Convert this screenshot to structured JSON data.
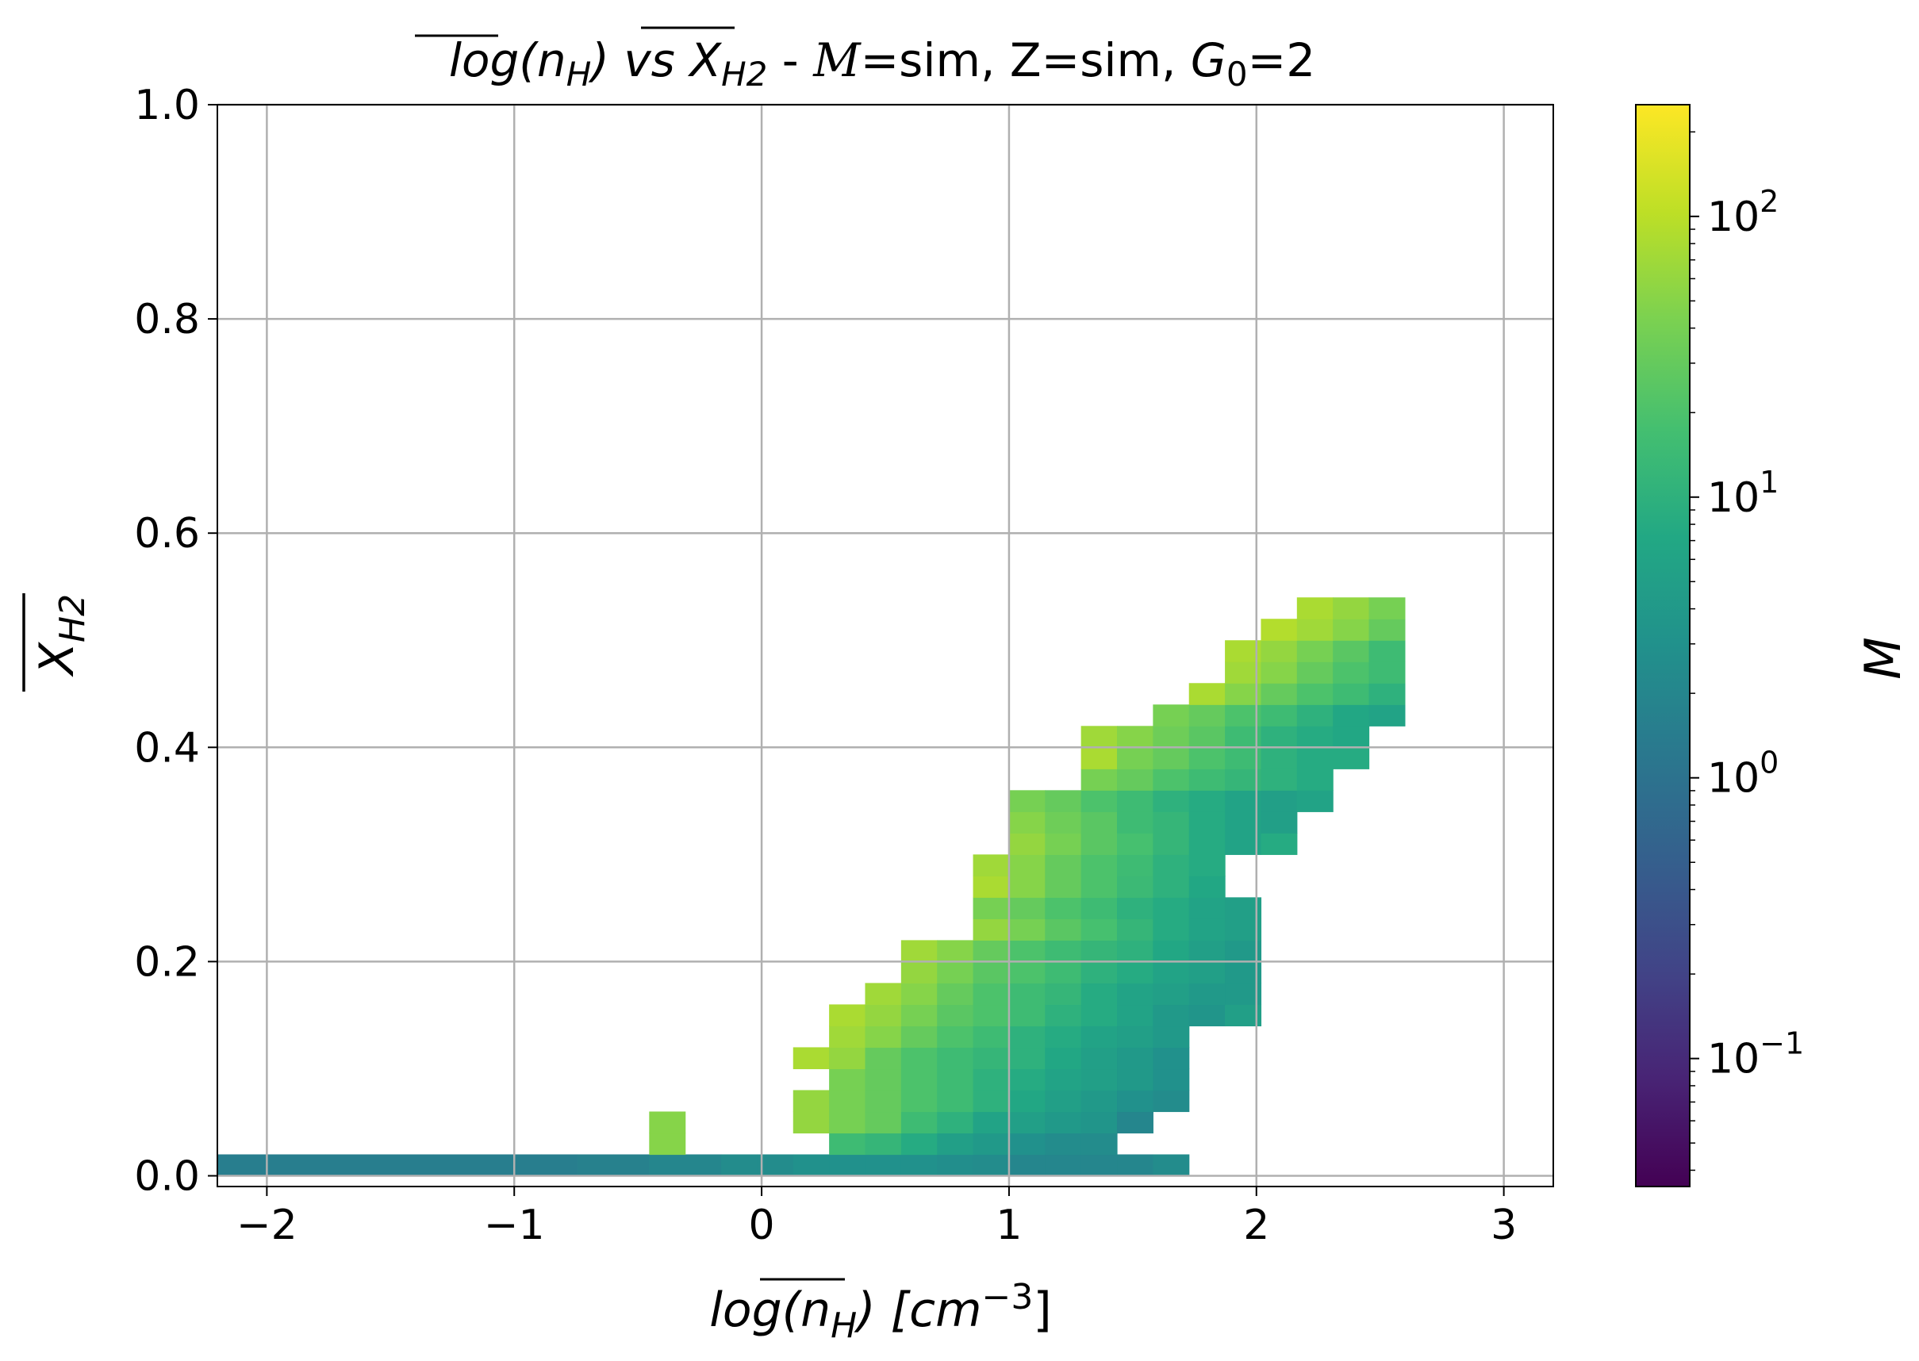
{
  "chart_data": {
    "type": "heatmap",
    "title": {
      "prefix": "log(",
      "nh": "n",
      "nh_sub": "H",
      "mid": ") vs ",
      "xh": "X",
      "xh_sub": "H2",
      "rest": " - ",
      "mach": "M",
      "params": "=sim, Z=sim, ",
      "g0": "G",
      "g0_sub": "0",
      "g0_val": "=2"
    },
    "xlabel": {
      "prefix": "log(",
      "nh": "n",
      "nh_sub": "H",
      "suffix": ") [",
      "unit": "cm",
      "exp": "−3",
      "close": "]"
    },
    "ylabel": {
      "base": "X",
      "sub": "H2"
    },
    "colorbar_label": "M",
    "xlim": [
      -2.2,
      3.2
    ],
    "ylim": [
      -0.01,
      1.0
    ],
    "x_ticks": [
      {
        "value": -2,
        "label": "−2"
      },
      {
        "value": -1,
        "label": "−1"
      },
      {
        "value": 0,
        "label": "0"
      },
      {
        "value": 1,
        "label": "1"
      },
      {
        "value": 2,
        "label": "2"
      },
      {
        "value": 3,
        "label": "3"
      }
    ],
    "y_ticks": [
      {
        "value": 0.0,
        "label": "0.0"
      },
      {
        "value": 0.2,
        "label": "0.2"
      },
      {
        "value": 0.4,
        "label": "0.4"
      },
      {
        "value": 0.6,
        "label": "0.6"
      },
      {
        "value": 0.8,
        "label": "0.8"
      },
      {
        "value": 1.0,
        "label": "1.0"
      }
    ],
    "colorbar": {
      "scale": "log",
      "colormap": "viridis",
      "range": [
        0.035,
        250
      ],
      "ticks": [
        {
          "value": 0.1,
          "mant": "10",
          "exp": "−1"
        },
        {
          "value": 1,
          "mant": "10",
          "exp": "0"
        },
        {
          "value": 10,
          "mant": "10",
          "exp": "1"
        },
        {
          "value": 100,
          "mant": "10",
          "exp": "2"
        }
      ]
    },
    "grid": true,
    "bins": {
      "x_min": -2.2,
      "x_max": 2.6,
      "x_count": 33,
      "y_min": 0.0,
      "y_max": 1.0,
      "y_count": 50,
      "x_range": [
        -2.2,
        2.6
      ],
      "y_range": [
        0,
        1
      ],
      "cells": [
        [
          0,
          0,
          1.5
        ],
        [
          1,
          0,
          1.5
        ],
        [
          2,
          0,
          1.5
        ],
        [
          3,
          0,
          1.5
        ],
        [
          4,
          0,
          1.5
        ],
        [
          5,
          0,
          1.5
        ],
        [
          6,
          0,
          1.5
        ],
        [
          7,
          0,
          1.5
        ],
        [
          8,
          0,
          1.5
        ],
        [
          9,
          0,
          1.5
        ],
        [
          10,
          0,
          1.7
        ],
        [
          11,
          0,
          1.7
        ],
        [
          12,
          0,
          2
        ],
        [
          13,
          0,
          2
        ],
        [
          14,
          0,
          2.5
        ],
        [
          15,
          0,
          2.5
        ],
        [
          16,
          0,
          3
        ],
        [
          17,
          0,
          3
        ],
        [
          18,
          0,
          3
        ],
        [
          19,
          0,
          3
        ],
        [
          20,
          0,
          2.7
        ],
        [
          21,
          0,
          2.5
        ],
        [
          22,
          0,
          2
        ],
        [
          23,
          0,
          2
        ],
        [
          24,
          0,
          2
        ],
        [
          25,
          0,
          2
        ],
        [
          26,
          0,
          2.5
        ],
        [
          12,
          1,
          50
        ],
        [
          17,
          1,
          15
        ],
        [
          18,
          1,
          12
        ],
        [
          19,
          1,
          8
        ],
        [
          20,
          1,
          5
        ],
        [
          21,
          1,
          4
        ],
        [
          22,
          1,
          3
        ],
        [
          23,
          1,
          2.5
        ],
        [
          24,
          1,
          2.5
        ],
        [
          12,
          2,
          50
        ],
        [
          16,
          2,
          60
        ],
        [
          17,
          2,
          40
        ],
        [
          18,
          2,
          30
        ],
        [
          19,
          2,
          15
        ],
        [
          20,
          2,
          10
        ],
        [
          21,
          2,
          6
        ],
        [
          22,
          2,
          5
        ],
        [
          23,
          2,
          4
        ],
        [
          24,
          2,
          3.5
        ],
        [
          25,
          2,
          2
        ],
        [
          16,
          3,
          60
        ],
        [
          17,
          3,
          40
        ],
        [
          18,
          3,
          30
        ],
        [
          19,
          3,
          20
        ],
        [
          20,
          3,
          15
        ],
        [
          21,
          3,
          10
        ],
        [
          22,
          3,
          7
        ],
        [
          23,
          3,
          5
        ],
        [
          24,
          3,
          4
        ],
        [
          25,
          3,
          3
        ],
        [
          26,
          3,
          2.5
        ],
        [
          17,
          4,
          40
        ],
        [
          18,
          4,
          30
        ],
        [
          19,
          4,
          20
        ],
        [
          20,
          4,
          15
        ],
        [
          21,
          4,
          10
        ],
        [
          22,
          4,
          8
        ],
        [
          23,
          4,
          6
        ],
        [
          24,
          4,
          5
        ],
        [
          25,
          4,
          4
        ],
        [
          26,
          4,
          3
        ],
        [
          16,
          5,
          80
        ],
        [
          17,
          5,
          60
        ],
        [
          18,
          5,
          30
        ],
        [
          19,
          5,
          20
        ],
        [
          20,
          5,
          15
        ],
        [
          21,
          5,
          12
        ],
        [
          22,
          5,
          10
        ],
        [
          23,
          5,
          7
        ],
        [
          24,
          5,
          5
        ],
        [
          25,
          5,
          4
        ],
        [
          26,
          5,
          3
        ],
        [
          17,
          6,
          70
        ],
        [
          18,
          6,
          50
        ],
        [
          19,
          6,
          30
        ],
        [
          20,
          6,
          20
        ],
        [
          21,
          6,
          15
        ],
        [
          22,
          6,
          10
        ],
        [
          23,
          6,
          8
        ],
        [
          24,
          6,
          6
        ],
        [
          25,
          6,
          5
        ],
        [
          26,
          6,
          4
        ],
        [
          17,
          7,
          80
        ],
        [
          18,
          7,
          60
        ],
        [
          19,
          7,
          40
        ],
        [
          20,
          7,
          25
        ],
        [
          21,
          7,
          20
        ],
        [
          22,
          7,
          15
        ],
        [
          23,
          7,
          10
        ],
        [
          24,
          7,
          8
        ],
        [
          25,
          7,
          6
        ],
        [
          26,
          7,
          4
        ],
        [
          27,
          7,
          3.5
        ],
        [
          28,
          7,
          5
        ],
        [
          18,
          8,
          70
        ],
        [
          19,
          8,
          50
        ],
        [
          20,
          8,
          30
        ],
        [
          21,
          8,
          20
        ],
        [
          22,
          8,
          15
        ],
        [
          23,
          8,
          12
        ],
        [
          24,
          8,
          8
        ],
        [
          25,
          8,
          6
        ],
        [
          26,
          8,
          5
        ],
        [
          27,
          8,
          4
        ],
        [
          28,
          8,
          4
        ],
        [
          19,
          9,
          60
        ],
        [
          20,
          9,
          40
        ],
        [
          21,
          9,
          25
        ],
        [
          22,
          9,
          20
        ],
        [
          23,
          9,
          15
        ],
        [
          24,
          9,
          10
        ],
        [
          25,
          9,
          8
        ],
        [
          26,
          9,
          6
        ],
        [
          27,
          9,
          5
        ],
        [
          28,
          9,
          4
        ],
        [
          19,
          10,
          70
        ],
        [
          20,
          10,
          50
        ],
        [
          21,
          10,
          30
        ],
        [
          22,
          10,
          20
        ],
        [
          23,
          10,
          15
        ],
        [
          24,
          10,
          12
        ],
        [
          25,
          10,
          10
        ],
        [
          26,
          10,
          7
        ],
        [
          27,
          10,
          5
        ],
        [
          28,
          10,
          4
        ],
        [
          21,
          11,
          60
        ],
        [
          22,
          11,
          40
        ],
        [
          23,
          11,
          25
        ],
        [
          24,
          11,
          18
        ],
        [
          25,
          11,
          12
        ],
        [
          26,
          11,
          8
        ],
        [
          27,
          11,
          6
        ],
        [
          28,
          11,
          5
        ],
        [
          21,
          12,
          40
        ],
        [
          22,
          12,
          30
        ],
        [
          23,
          12,
          20
        ],
        [
          24,
          12,
          15
        ],
        [
          25,
          12,
          10
        ],
        [
          26,
          12,
          8
        ],
        [
          27,
          12,
          6
        ],
        [
          28,
          12,
          5
        ],
        [
          21,
          13,
          80
        ],
        [
          22,
          13,
          50
        ],
        [
          23,
          13,
          30
        ],
        [
          24,
          13,
          20
        ],
        [
          25,
          13,
          14
        ],
        [
          26,
          13,
          10
        ],
        [
          27,
          13,
          7
        ],
        [
          21,
          14,
          70
        ],
        [
          22,
          14,
          50
        ],
        [
          23,
          14,
          30
        ],
        [
          24,
          14,
          20
        ],
        [
          25,
          14,
          15
        ],
        [
          26,
          14,
          10
        ],
        [
          27,
          14,
          8
        ],
        [
          22,
          15,
          60
        ],
        [
          23,
          15,
          40
        ],
        [
          24,
          15,
          25
        ],
        [
          25,
          15,
          18
        ],
        [
          26,
          15,
          12
        ],
        [
          27,
          15,
          8
        ],
        [
          28,
          15,
          6
        ],
        [
          29,
          15,
          8
        ],
        [
          22,
          16,
          50
        ],
        [
          23,
          16,
          35
        ],
        [
          24,
          16,
          25
        ],
        [
          25,
          16,
          15
        ],
        [
          26,
          16,
          12
        ],
        [
          27,
          16,
          8
        ],
        [
          28,
          16,
          6
        ],
        [
          29,
          16,
          5
        ],
        [
          22,
          17,
          40
        ],
        [
          23,
          17,
          30
        ],
        [
          24,
          17,
          20
        ],
        [
          25,
          17,
          15
        ],
        [
          26,
          17,
          10
        ],
        [
          27,
          17,
          8
        ],
        [
          28,
          17,
          6
        ],
        [
          29,
          17,
          5
        ],
        [
          30,
          17,
          6
        ],
        [
          24,
          18,
          40
        ],
        [
          25,
          18,
          30
        ],
        [
          26,
          18,
          20
        ],
        [
          27,
          18,
          15
        ],
        [
          28,
          18,
          12
        ],
        [
          29,
          18,
          10
        ],
        [
          30,
          18,
          8
        ],
        [
          24,
          19,
          80
        ],
        [
          25,
          19,
          40
        ],
        [
          26,
          19,
          30
        ],
        [
          27,
          19,
          20
        ],
        [
          28,
          19,
          15
        ],
        [
          29,
          19,
          10
        ],
        [
          30,
          19,
          8
        ],
        [
          31,
          19,
          8
        ],
        [
          24,
          20,
          70
        ],
        [
          25,
          20,
          50
        ],
        [
          26,
          20,
          35
        ],
        [
          27,
          20,
          25
        ],
        [
          28,
          20,
          15
        ],
        [
          29,
          20,
          10
        ],
        [
          30,
          20,
          8
        ],
        [
          31,
          20,
          7
        ],
        [
          26,
          21,
          40
        ],
        [
          27,
          21,
          30
        ],
        [
          28,
          21,
          20
        ],
        [
          29,
          21,
          15
        ],
        [
          30,
          21,
          10
        ],
        [
          31,
          21,
          7
        ],
        [
          32,
          21,
          6
        ],
        [
          27,
          22,
          80
        ],
        [
          28,
          22,
          50
        ],
        [
          29,
          22,
          30
        ],
        [
          30,
          22,
          20
        ],
        [
          31,
          22,
          15
        ],
        [
          32,
          22,
          10
        ],
        [
          28,
          23,
          70
        ],
        [
          29,
          23,
          50
        ],
        [
          30,
          23,
          30
        ],
        [
          31,
          23,
          20
        ],
        [
          32,
          23,
          15
        ],
        [
          28,
          24,
          80
        ],
        [
          29,
          24,
          60
        ],
        [
          30,
          24,
          40
        ],
        [
          31,
          24,
          25
        ],
        [
          32,
          24,
          15
        ],
        [
          29,
          25,
          90
        ],
        [
          30,
          25,
          70
        ],
        [
          31,
          25,
          50
        ],
        [
          32,
          25,
          30
        ],
        [
          30,
          26,
          80
        ],
        [
          31,
          26,
          60
        ],
        [
          32,
          26,
          40
        ]
      ]
    }
  }
}
